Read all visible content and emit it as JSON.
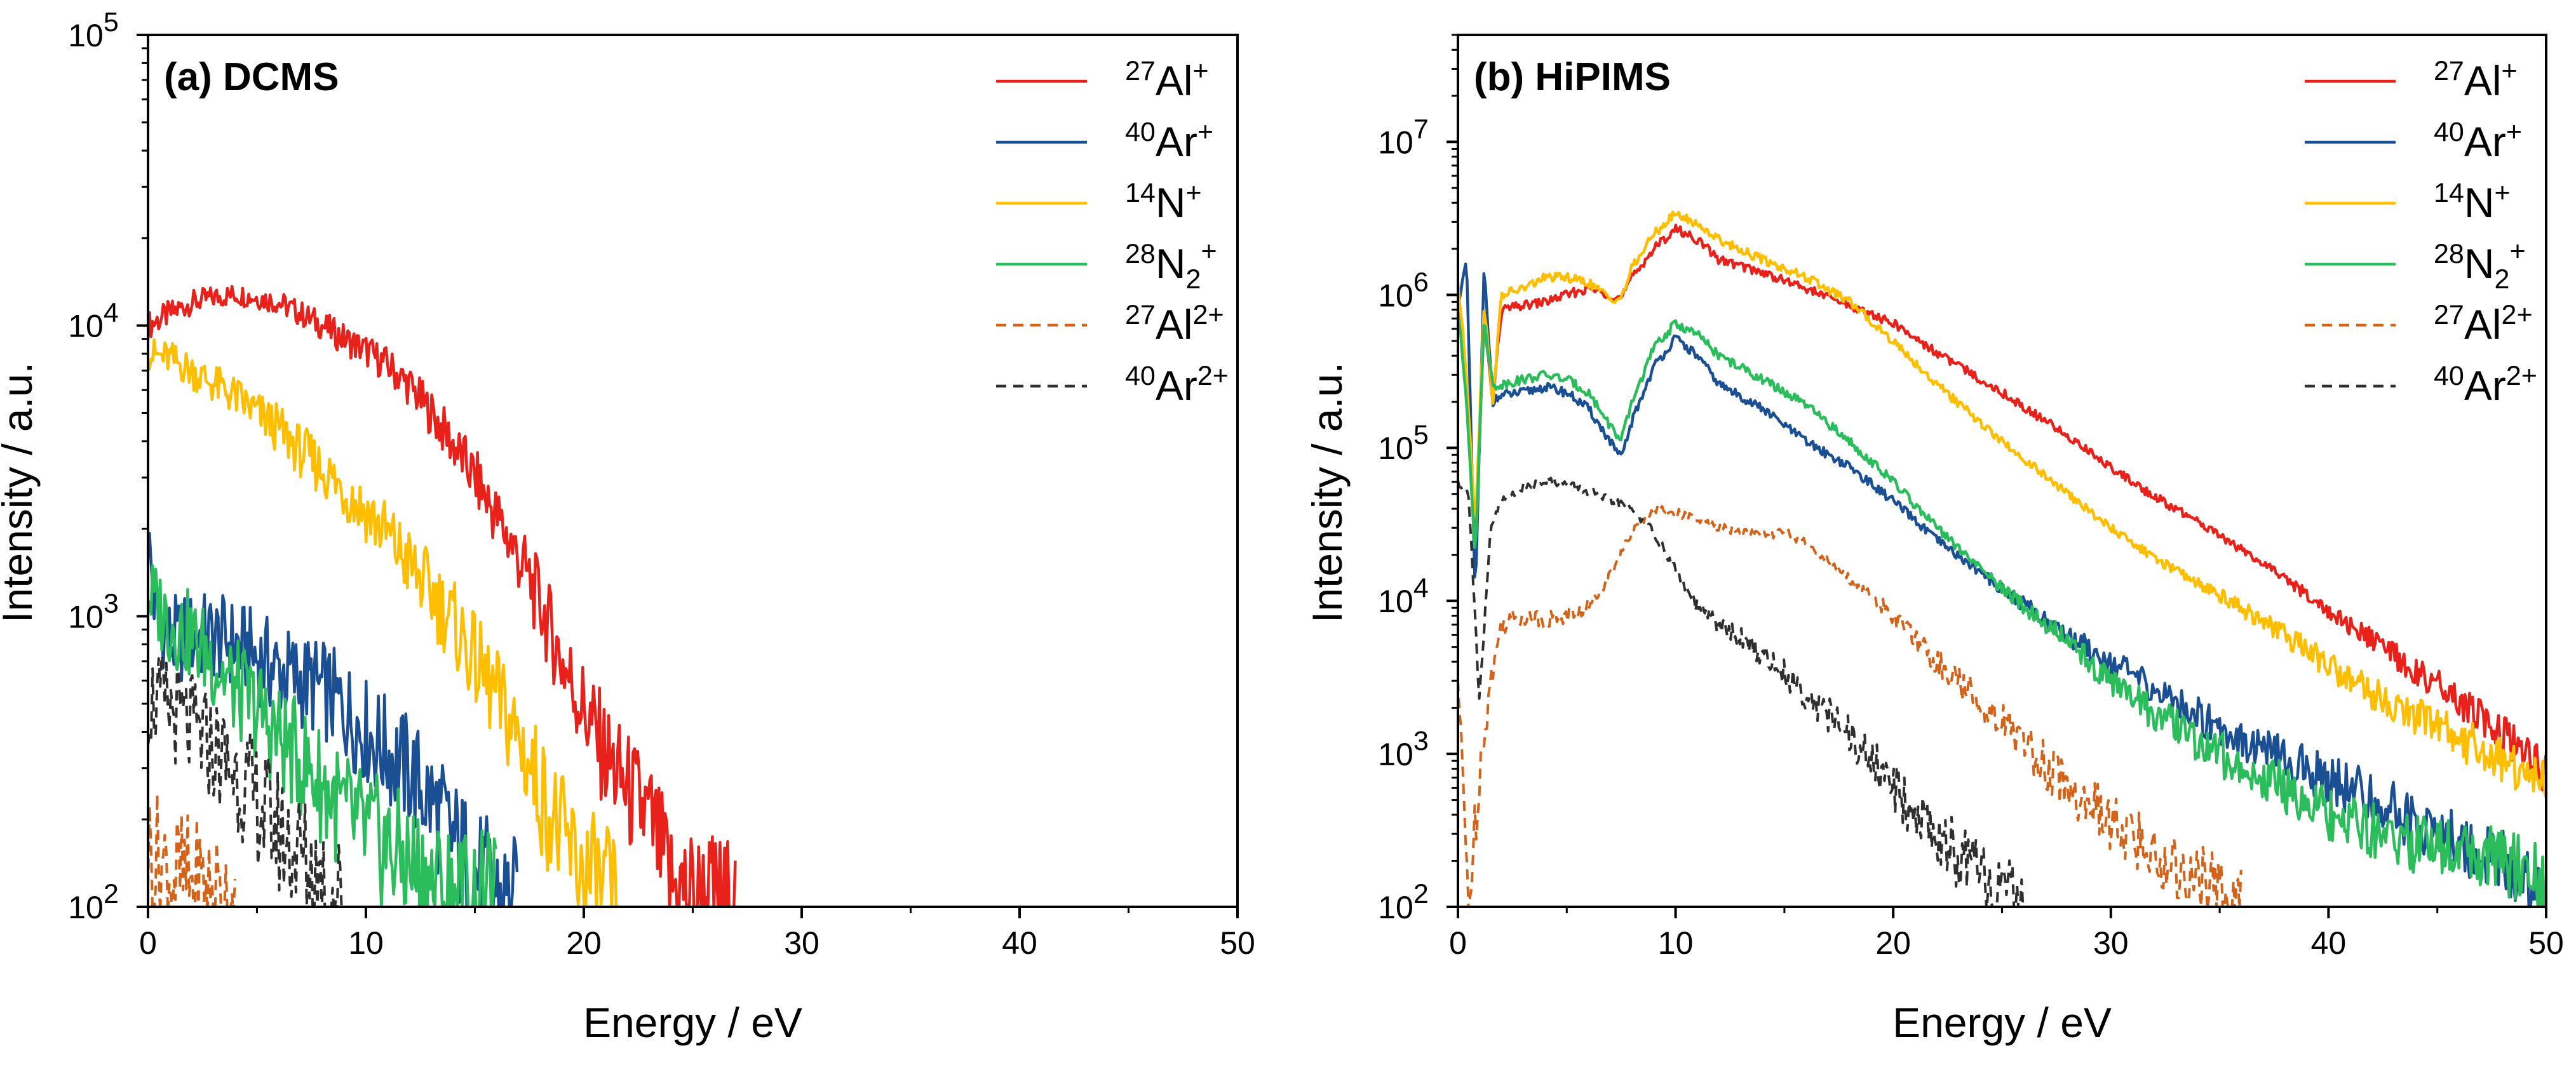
{
  "chart_data": [
    {
      "type": "line",
      "title": "(a) DCMS",
      "xlabel": "Energy / eV",
      "ylabel": "Intensity / a.u.",
      "xlim": [
        0,
        50
      ],
      "ylim": [
        100,
        100000
      ],
      "yscale": "log",
      "grid": false,
      "legend_position": "top-right",
      "x_ticks": [
        "0",
        "10",
        "20",
        "30",
        "40",
        "50"
      ],
      "y_ticks": [
        {
          "base": "10",
          "exp": "2"
        },
        {
          "base": "10",
          "exp": "3"
        },
        {
          "base": "10",
          "exp": "4"
        },
        {
          "base": "10",
          "exp": "5"
        }
      ],
      "series": [
        {
          "name": "27Al+",
          "mass": "27",
          "element": "Al",
          "charge": "+",
          "color": "#e8221b",
          "dash": "solid",
          "x": [
            0,
            1,
            2,
            3,
            4,
            5,
            6,
            7,
            8,
            9,
            10,
            11,
            12,
            13,
            14,
            15,
            16,
            17,
            18,
            19,
            20,
            21,
            22,
            23,
            24,
            25,
            26,
            27
          ],
          "y": [
            10000,
            11000,
            12000,
            12500,
            12800,
            12500,
            12000,
            11000,
            10000,
            9000,
            8200,
            7300,
            6200,
            5000,
            3900,
            3000,
            2200,
            1600,
            1100,
            700,
            480,
            330,
            250,
            200,
            120,
            110,
            105,
            100
          ]
        },
        {
          "name": "40Ar+",
          "mass": "40",
          "element": "Ar",
          "charge": "+",
          "color": "#1b4f93",
          "dash": "solid",
          "x": [
            0,
            0.3,
            1,
            2,
            3,
            4,
            5,
            6,
            7,
            8,
            9,
            10,
            11,
            12,
            13,
            14,
            15,
            16,
            17
          ],
          "y": [
            1900,
            1100,
            820,
            850,
            850,
            800,
            720,
            650,
            600,
            560,
            480,
            400,
            340,
            290,
            230,
            170,
            130,
            110,
            100
          ]
        },
        {
          "name": "14N+",
          "mass": "14",
          "element": "N",
          "charge": "+",
          "color": "#ffbf00",
          "dash": "solid",
          "x": [
            0,
            1,
            2,
            3,
            4,
            5,
            6,
            7,
            8,
            9,
            10,
            11,
            12,
            13,
            14,
            15,
            16,
            17,
            18,
            19,
            20,
            21,
            21.5
          ],
          "y": [
            8000,
            7700,
            7000,
            6300,
            5700,
            5000,
            4400,
            3700,
            3200,
            2700,
            2300,
            1900,
            1500,
            1200,
            950,
            700,
            520,
            380,
            250,
            170,
            130,
            110,
            100
          ]
        },
        {
          "name": "28N2+",
          "mass": "28",
          "element": "N",
          "subscript": "2",
          "charge": "+",
          "color": "#2bbd5c",
          "dash": "solid",
          "x": [
            0,
            1,
            2,
            3,
            4,
            5,
            6,
            7,
            8,
            9,
            10,
            11,
            12,
            13,
            14,
            15,
            16
          ],
          "y": [
            1200,
            950,
            850,
            700,
            560,
            480,
            380,
            320,
            260,
            210,
            180,
            160,
            140,
            120,
            110,
            105,
            100
          ]
        },
        {
          "name": "27Al2+",
          "mass": "27",
          "element": "Al",
          "charge": "2+",
          "color": "#d4631a",
          "dash": "dashed",
          "x": [
            0,
            1,
            2,
            3,
            4
          ],
          "y": [
            160,
            130,
            120,
            110,
            100
          ]
        },
        {
          "name": "40Ar2+",
          "mass": "40",
          "element": "Ar",
          "charge": "2+",
          "color": "#2f2f2f",
          "dash": "dashed",
          "x": [
            0,
            1,
            2,
            3,
            4,
            5,
            6,
            7,
            8,
            9
          ],
          "y": [
            520,
            480,
            410,
            350,
            290,
            230,
            180,
            150,
            120,
            100
          ]
        }
      ]
    },
    {
      "type": "line",
      "title": "(b) HiPIMS",
      "xlabel": "Energy / eV",
      "ylabel": "Intensity / a.u.",
      "xlim": [
        0,
        50
      ],
      "ylim": [
        100,
        50000000
      ],
      "yscale": "log",
      "grid": false,
      "legend_position": "top-right",
      "x_ticks": [
        "0",
        "10",
        "20",
        "30",
        "40",
        "50"
      ],
      "y_ticks": [
        {
          "base": "10",
          "exp": "2"
        },
        {
          "base": "10",
          "exp": "3"
        },
        {
          "base": "10",
          "exp": "4"
        },
        {
          "base": "10",
          "exp": "5"
        },
        {
          "base": "10",
          "exp": "6"
        },
        {
          "base": "10",
          "exp": "7"
        }
      ],
      "series": [
        {
          "name": "27Al+",
          "mass": "27",
          "element": "Al",
          "charge": "+",
          "color": "#e8221b",
          "dash": "solid",
          "x": [
            0,
            0.4,
            0.8,
            1.2,
            1.6,
            2,
            3,
            4,
            5,
            6,
            7,
            7.5,
            8,
            9,
            10,
            11,
            12,
            14,
            16,
            18,
            20,
            22,
            25,
            28,
            30,
            32,
            35,
            38,
            40,
            42,
            45,
            48,
            50
          ],
          "y": [
            900000,
            250000,
            20000,
            700000,
            200000,
            800000,
            850000,
            900000,
            1000000,
            1100000,
            1000000,
            950000,
            1300000,
            2000000,
            2700000,
            2300000,
            1700000,
            1400000,
            1100000,
            850000,
            650000,
            420000,
            230000,
            120000,
            75000,
            48000,
            27000,
            14000,
            8500,
            5500,
            2800,
            1300,
            700
          ]
        },
        {
          "name": "40Ar+",
          "mass": "40",
          "element": "Ar",
          "charge": "+",
          "color": "#1b4f93",
          "dash": "solid",
          "x": [
            0,
            0.4,
            0.8,
            1.2,
            1.6,
            2,
            3,
            4,
            5,
            6,
            7,
            7.5,
            8,
            9,
            10,
            11,
            12,
            14,
            16,
            18,
            20,
            22,
            25,
            28,
            30,
            32,
            35,
            38,
            40,
            42,
            45,
            48,
            50
          ],
          "y": [
            900000,
            1600000,
            10000,
            1500000,
            200000,
            220000,
            230000,
            250000,
            230000,
            180000,
            110000,
            85000,
            150000,
            340000,
            520000,
            400000,
            260000,
            180000,
            110000,
            75000,
            45000,
            25000,
            12000,
            6000,
            4000,
            2600,
            1500,
            900,
            700,
            500,
            300,
            200,
            100
          ]
        },
        {
          "name": "14N+",
          "mass": "14",
          "element": "N",
          "charge": "+",
          "color": "#ffbf00",
          "dash": "solid",
          "x": [
            0,
            0.4,
            0.8,
            1.2,
            1.6,
            2,
            3,
            4,
            5,
            6,
            7,
            7.5,
            8,
            9,
            10,
            11,
            12,
            14,
            16,
            18,
            20,
            22,
            25,
            28,
            30,
            32,
            35,
            38,
            40,
            42,
            45,
            48,
            50
          ],
          "y": [
            1200000,
            300000,
            30000,
            900000,
            200000,
            1000000,
            1100000,
            1300000,
            1300000,
            1200000,
            950000,
            950000,
            1500000,
            2500000,
            3400000,
            2900000,
            2300000,
            1700000,
            1300000,
            900000,
            500000,
            260000,
            110000,
            50000,
            30000,
            19000,
            11000,
            6000,
            3800,
            2500,
            1500,
            900,
            600
          ]
        },
        {
          "name": "28N2+",
          "mass": "28",
          "element": "N",
          "subscript": "2",
          "charge": "+",
          "color": "#2bbd5c",
          "dash": "solid",
          "x": [
            0,
            0.4,
            0.8,
            1.2,
            1.6,
            2,
            3,
            4,
            5,
            6,
            7,
            7.5,
            8,
            9,
            10,
            11,
            12,
            14,
            16,
            18,
            20,
            22,
            25,
            28,
            30,
            32,
            35,
            38,
            40,
            42,
            45,
            48,
            50
          ],
          "y": [
            800000,
            200000,
            20000,
            700000,
            250000,
            260000,
            280000,
            300000,
            280000,
            230000,
            140000,
            110000,
            200000,
            450000,
            650000,
            550000,
            400000,
            280000,
            190000,
            110000,
            60000,
            30000,
            12000,
            5500,
            3000,
            1800,
            1000,
            600,
            400,
            300,
            250,
            200,
            150
          ]
        },
        {
          "name": "27Al2+",
          "mass": "27",
          "element": "Al",
          "charge": "2+",
          "color": "#d4631a",
          "dash": "dashed",
          "x": [
            0,
            0.5,
            1,
            1.5,
            2,
            3,
            4,
            5,
            6,
            7,
            8,
            9,
            10,
            12,
            14,
            15,
            16,
            18,
            20,
            22,
            24,
            26,
            28,
            30,
            32,
            34,
            36
          ],
          "y": [
            3000,
            100,
            800,
            3000,
            7000,
            8000,
            7500,
            8000,
            9000,
            15000,
            28000,
            40000,
            38000,
            30000,
            27000,
            28000,
            24000,
            14000,
            8000,
            4000,
            2200,
            1200,
            600,
            350,
            220,
            150,
            100
          ]
        },
        {
          "name": "40Ar2+",
          "mass": "40",
          "element": "Ar",
          "charge": "2+",
          "color": "#2f2f2f",
          "dash": "dashed",
          "x": [
            0,
            0.5,
            1,
            1.5,
            2,
            3,
            4,
            5,
            6,
            7,
            8,
            9,
            10,
            11,
            12,
            14,
            16,
            18,
            20,
            22,
            24,
            26
          ],
          "y": [
            60000,
            50000,
            2000,
            30000,
            45000,
            55000,
            62000,
            58000,
            52000,
            45000,
            40000,
            28000,
            16000,
            9000,
            7000,
            4500,
            2500,
            1300,
            600,
            300,
            150,
            100
          ]
        }
      ]
    }
  ]
}
